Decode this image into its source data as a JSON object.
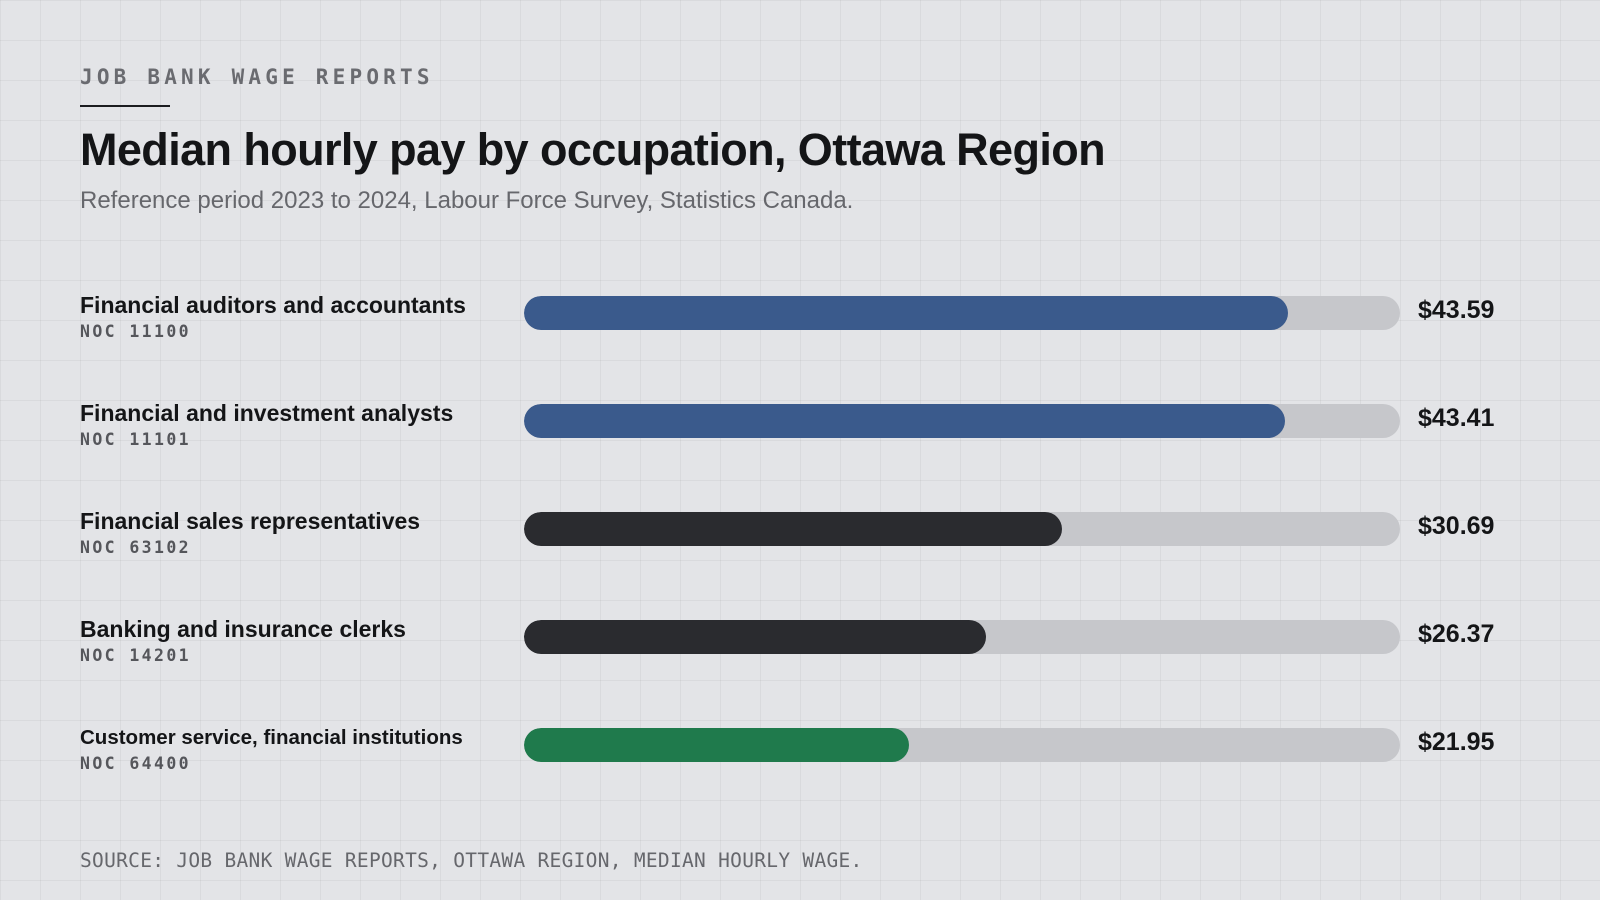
{
  "header": {
    "kicker": "JOB BANK WAGE REPORTS",
    "title": "Median hourly pay by occupation, Ottawa Region",
    "subtitle": "Reference period 2023 to 2024, Labour Force Survey, Statistics Canada."
  },
  "footer": {
    "source": "SOURCE: JOB BANK WAGE REPORTS, OTTAWA REGION, MEDIAN HOURLY WAGE."
  },
  "colors": {
    "blue": "#3a5a8c",
    "dark": "#2a2b2f",
    "green": "#1f7a4c",
    "track": "#c6c7cb"
  },
  "chart_data": {
    "type": "bar",
    "orientation": "horizontal",
    "xlim": [
      0,
      50
    ],
    "grid": false,
    "categories": [
      "Financial auditors and accountants",
      "Financial and investment analysts",
      "Financial sales representatives",
      "Banking and insurance clerks",
      "Customer service, financial institutions"
    ],
    "codes": [
      "NOC 11100",
      "NOC 11101",
      "NOC 63102",
      "NOC 14201",
      "NOC 64400"
    ],
    "values": [
      43.59,
      43.41,
      30.69,
      26.37,
      21.95
    ],
    "value_labels": [
      "$43.59",
      "$43.41",
      "$30.69",
      "$26.37",
      "$21.95"
    ],
    "bar_colors": [
      "blue",
      "blue",
      "dark",
      "dark",
      "green"
    ]
  }
}
